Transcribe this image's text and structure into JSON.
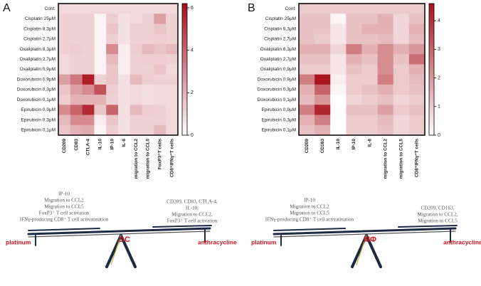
{
  "chart_data": [
    {
      "type": "heatmap",
      "label": "A",
      "rows": [
        "Cont.",
        "Cisplatin 25μM",
        "Cisplatin 8,3μM",
        "Cisplatin 2,7μM",
        "Oxaliplatin 8,3μM",
        "Oxaliplatin 2,7μM",
        "Oxaliplatin 0,9μM",
        "Doxorubicin 0,9μM",
        "Doxorubicin 0,3μM",
        "Doxorubicin 0,1μM",
        "Epirubicin 0,9μM",
        "Epirubicin 0,3μM",
        "Epirubicin 0,1μM"
      ],
      "columns": [
        "CD209",
        "CD83",
        "CTLA-4",
        "IL-10",
        "IP-10",
        "IL-8",
        "migration to CCL2",
        "migration to CCL5",
        "FoxP3⁺T cells",
        "CD8⁺IFNγ⁺T cells"
      ],
      "values": [
        [
          1,
          1,
          1,
          1,
          1,
          1,
          1,
          1,
          1,
          1
        ],
        [
          1.2,
          1.2,
          1.2,
          0.3,
          1.3,
          0.8,
          1.0,
          1.2,
          2.5,
          1.2
        ],
        [
          1.2,
          1.2,
          1.2,
          0.3,
          1.5,
          0.8,
          1.2,
          1.2,
          1.5,
          1.2
        ],
        [
          1.2,
          1.2,
          1.2,
          0.3,
          1.3,
          0.8,
          1.2,
          1.2,
          1.3,
          1.2
        ],
        [
          1.2,
          1.3,
          1.2,
          0.3,
          3.0,
          0.5,
          1.3,
          1.8,
          1.5,
          1.8
        ],
        [
          1.0,
          1.2,
          1.2,
          0.3,
          1.8,
          0.5,
          1.2,
          1.3,
          1.3,
          1.2
        ],
        [
          1.0,
          1.2,
          1.2,
          0.3,
          1.5,
          0.5,
          1.2,
          1.2,
          1.5,
          1.0
        ],
        [
          2.5,
          3.5,
          5.8,
          1.2,
          1.5,
          0.8,
          1.8,
          1.3,
          1.2,
          1.2
        ],
        [
          1.5,
          2.5,
          3.0,
          4.5,
          1.3,
          0.8,
          1.0,
          0.8,
          1.0,
          1.0
        ],
        [
          1.3,
          2.0,
          2.0,
          2.0,
          1.2,
          0.8,
          1.0,
          0.8,
          1.0,
          1.0
        ],
        [
          3.0,
          4.0,
          5.5,
          1.5,
          4.0,
          0.8,
          1.8,
          1.3,
          1.2,
          1.0
        ],
        [
          1.8,
          3.0,
          3.0,
          0.5,
          1.5,
          0.8,
          1.2,
          1.2,
          1.2,
          1.0
        ],
        [
          1.5,
          2.0,
          2.2,
          0.3,
          1.3,
          0.8,
          1.2,
          1.2,
          1.8,
          1.0
        ]
      ],
      "zlim": [
        0,
        6.2
      ],
      "zticks": [
        0,
        2,
        4,
        6
      ],
      "colors": [
        "#ffffff",
        "#a8101a"
      ]
    },
    {
      "type": "heatmap",
      "label": "B",
      "rows": [
        "Cont.",
        "Cisplatin 25μM",
        "Cisplatin 8,3μM",
        "Cisplatin 2,7μM",
        "Oxaliplatin 8,3μM",
        "Oxaliplatin 2,7μM",
        "Oxaliplatin 0,9μM",
        "Doxorubicin 0,9μM",
        "Doxorubicin 0,3μM",
        "Doxorubicin 0,1μM",
        "Epirubicin 0,9μM",
        "Epirubicin 0,3μM",
        "Epirubicin 0,1μM"
      ],
      "columns": [
        "CD209",
        "CD163",
        "IL-10",
        "IP-10",
        "IL-8",
        "migration to CCL2",
        "migration to CCL5",
        "CD8⁺IFNγ⁺T cells"
      ],
      "values": [
        [
          1,
          1,
          1,
          1,
          1,
          1,
          1,
          1
        ],
        [
          1.2,
          1.2,
          0.2,
          1.2,
          1.2,
          1.5,
          0.8,
          1.2
        ],
        [
          1.2,
          1.2,
          0.5,
          1.2,
          1.5,
          1.5,
          0.8,
          1.5
        ],
        [
          1.2,
          1.0,
          0.5,
          1.2,
          1.2,
          1.3,
          0.8,
          1.3
        ],
        [
          1.5,
          1.5,
          0.8,
          2.5,
          1.5,
          2.2,
          1.5,
          2.0
        ],
        [
          1.2,
          1.2,
          0.5,
          1.5,
          1.2,
          2.2,
          1.2,
          2.8
        ],
        [
          1.0,
          1.0,
          0.5,
          1.2,
          1.0,
          2.2,
          1.0,
          1.5
        ],
        [
          2.5,
          4.5,
          0.3,
          1.0,
          1.0,
          2.5,
          1.0,
          1.3
        ],
        [
          1.5,
          3.0,
          0.2,
          1.0,
          1.2,
          1.5,
          1.0,
          1.2
        ],
        [
          1.3,
          2.0,
          0,
          0.8,
          1.0,
          1.2,
          0.8,
          1.0
        ],
        [
          2.5,
          4.2,
          0,
          1.2,
          1.2,
          1.8,
          1.0,
          1.2
        ],
        [
          1.5,
          2.5,
          0,
          1.0,
          1.0,
          1.3,
          0.8,
          1.0
        ],
        [
          1.2,
          1.5,
          0,
          1.0,
          1.0,
          1.2,
          0.8,
          1.0
        ]
      ],
      "zlim": [
        0,
        4.6
      ],
      "zticks": [
        0,
        1,
        2,
        3,
        4
      ],
      "colors": [
        "#ffffff",
        "#a8101a"
      ]
    }
  ],
  "diagrams": [
    {
      "left_text": [
        "IP-10",
        "Migration to CCL2",
        "Migration to CCL5",
        "FoxP3⁺ T cell activation",
        "IFNγ-producing CD8⁺ T cell activatination"
      ],
      "right_text": [
        "CD209, CD83, CTLA-4,",
        "IL-10,",
        "Migration to CCL2,",
        "FoxP3⁺ T cell activation"
      ],
      "left_label": "platinum",
      "center_label": "DC",
      "right_label": "anthracycline"
    },
    {
      "left_text": [
        "IP-10",
        "Migration to CCL2",
        "Migration to CCL5",
        "IFNγ-producing CD8⁺ T cell activatination"
      ],
      "right_text": [
        "CD209, CD163,",
        "Migration to CCL2,",
        "Migration to CCL5"
      ],
      "left_label": "platinum",
      "center_label": "MΦ",
      "right_label": "anthracycline"
    }
  ]
}
